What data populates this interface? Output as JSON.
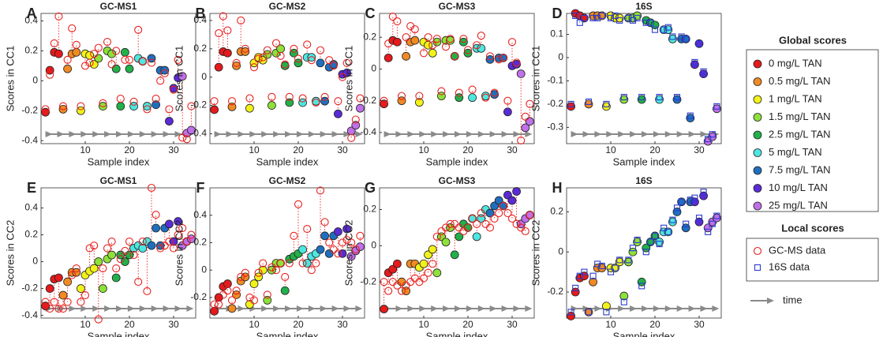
{
  "chart_data": {
    "type": "scatter",
    "global_title": "Global scores",
    "local_title": "Local scores",
    "time_label": "time",
    "groups": [
      {
        "name": "0 mg/L TAN",
        "color": "#e41a1c",
        "x": [
          1,
          2,
          3,
          4
        ]
      },
      {
        "name": "0.5 mg/L TAN",
        "color": "#f08a24",
        "x": [
          5,
          6,
          7,
          8
        ]
      },
      {
        "name": "1 mg/L TAN",
        "color": "#f2f21a",
        "x": [
          9,
          10,
          11,
          12
        ]
      },
      {
        "name": "1.5 mg/L TAN",
        "color": "#8ee03a",
        "x": [
          13,
          14,
          15,
          16
        ]
      },
      {
        "name": "2.5 mg/L TAN",
        "color": "#22b04a",
        "x": [
          17,
          18,
          19,
          20
        ]
      },
      {
        "name": "5 mg/L TAN",
        "color": "#4ee6e0",
        "x": [
          21,
          22,
          23,
          24
        ]
      },
      {
        "name": "7.5 mg/L TAN",
        "color": "#1f6fbf",
        "x": [
          25,
          26,
          27,
          28
        ]
      },
      {
        "name": "10 mg/L TAN",
        "color": "#5a2bd6",
        "x": [
          29,
          30,
          31
        ]
      },
      {
        "name": "25 mg/L TAN",
        "color": "#c070e8",
        "x": [
          32,
          33,
          34
        ]
      }
    ],
    "local_series": [
      {
        "name": "GC-MS data",
        "color": "#e8211f",
        "marker": "circle"
      },
      {
        "name": "16S data",
        "color": "#2a3bd0",
        "marker": "square"
      }
    ],
    "panels": [
      {
        "panel": "A",
        "title": "GC-MS1",
        "xlabel": "Sample index",
        "ylabel": "Scores in CC1",
        "xlim": [
          0,
          35
        ],
        "ylim": [
          -0.42,
          0.45
        ],
        "xticks": [
          10,
          20,
          30
        ],
        "yticks": [
          -0.4,
          -0.2,
          0,
          0.2,
          0.4
        ],
        "local_marker": "circle",
        "global": [
          [
            -0.21,
            0.07,
            0.19,
            0.18
          ],
          [
            -0.19,
            0.08,
            0.18,
            0.19
          ],
          [
            -0.2,
            0.18,
            0.17,
            0.11
          ],
          [
            0.15,
            -0.17,
            0.2,
            0.18
          ],
          [
            0.08,
            -0.17,
            0.19,
            0.08
          ],
          [
            -0.17,
            0.15,
            0.13,
            -0.17
          ],
          [
            0.15,
            -0.16,
            0.07,
            0.07
          ],
          [
            -0.27,
            -0.05,
            0.02
          ],
          [
            0.03,
            -0.35,
            -0.33
          ]
        ],
        "local": [
          [
            -0.19,
            0.04,
            0.25,
            0.43
          ],
          [
            -0.17,
            0.14,
            0.35,
            0.24
          ],
          [
            -0.17,
            0.1,
            0.12,
            0.18
          ],
          [
            0.22,
            -0.15,
            0.26,
            0.11
          ],
          [
            0.2,
            -0.12,
            0.14,
            0.14
          ],
          [
            -0.14,
            0.34,
            0.13,
            -0.19
          ],
          [
            0.12,
            -0.12,
            0.0,
            0.05
          ],
          [
            -0.19,
            -0.06,
            0.14
          ],
          [
            -0.38,
            -0.39,
            -0.17
          ]
        ]
      },
      {
        "panel": "B",
        "title": "GC-MS2",
        "xlabel": "Sample index",
        "ylabel": "Scores in CC1",
        "xlim": [
          0,
          35
        ],
        "ylim": [
          -0.47,
          0.45
        ],
        "xticks": [
          10,
          20,
          30
        ],
        "yticks": [
          -0.4,
          -0.2,
          0,
          0.2,
          0.4
        ],
        "local_marker": "circle",
        "global": [
          [
            -0.23,
            0.07,
            0.18,
            0.17
          ],
          [
            -0.21,
            0.08,
            0.18,
            0.18
          ],
          [
            -0.22,
            0.1,
            0.14,
            0.12
          ],
          [
            0.16,
            -0.2,
            0.17,
            0.2
          ],
          [
            0.08,
            -0.18,
            0.17,
            0.1
          ],
          [
            -0.18,
            0.14,
            0.14,
            -0.17
          ],
          [
            0.1,
            -0.17,
            0.07,
            0.09
          ],
          [
            -0.26,
            0.02,
            0.03
          ],
          [
            -0.38,
            -0.34,
            -0.22
          ]
        ],
        "local": [
          [
            -0.17,
            0.31,
            0.43,
            0.33
          ],
          [
            -0.17,
            0.1,
            0.4,
            0.2
          ],
          [
            -0.15,
            0.07,
            0.13,
            0.14
          ],
          [
            0.19,
            -0.14,
            0.24,
            0.15
          ],
          [
            0.09,
            -0.14,
            0.2,
            0.13
          ],
          [
            -0.15,
            0.23,
            0.12,
            -0.18
          ],
          [
            0.19,
            -0.14,
            0.12,
            0.08
          ],
          [
            -0.17,
            0.0,
            0.1
          ],
          [
            -0.43,
            -0.3,
            -0.15
          ]
        ]
      },
      {
        "panel": "C",
        "title": "GC-MS3",
        "xlabel": "Sample index",
        "ylabel": "Scores in CC1",
        "xlim": [
          0,
          35
        ],
        "ylim": [
          -0.47,
          0.35
        ],
        "xticks": [
          10,
          20,
          30
        ],
        "yticks": [
          -0.4,
          -0.2,
          0,
          0.2
        ],
        "local_marker": "circle",
        "global": [
          [
            -0.22,
            0.07,
            0.18,
            0.17
          ],
          [
            -0.2,
            0.08,
            0.17,
            0.18
          ],
          [
            -0.21,
            0.17,
            0.15,
            0.1
          ],
          [
            0.17,
            -0.17,
            0.18,
            0.18
          ],
          [
            0.08,
            -0.18,
            0.17,
            0.1
          ],
          [
            -0.18,
            0.13,
            0.13,
            -0.17
          ],
          [
            0.06,
            -0.16,
            0.07,
            0.07
          ],
          [
            -0.27,
            0.02,
            0.03
          ],
          [
            -0.03,
            -0.37,
            -0.33
          ]
        ],
        "local": [
          [
            -0.2,
            0.16,
            0.33,
            0.3
          ],
          [
            -0.17,
            0.2,
            0.27,
            0.25
          ],
          [
            -0.17,
            0.1,
            0.2,
            0.15
          ],
          [
            0.19,
            -0.14,
            0.14,
            0.19
          ],
          [
            0.08,
            -0.15,
            0.19,
            0.12
          ],
          [
            -0.13,
            0.15,
            0.21,
            -0.18
          ],
          [
            0.08,
            -0.15,
            0.06,
            0.07
          ],
          [
            -0.2,
            0.17,
            0.04
          ],
          [
            -0.45,
            -0.3,
            -0.22
          ]
        ]
      },
      {
        "panel": "D",
        "title": "16S",
        "xlabel": "Sample index",
        "ylabel": "Scores in CC1",
        "xlim": [
          0,
          35
        ],
        "ylim": [
          -0.37,
          0.19
        ],
        "xticks": [
          10,
          20,
          30
        ],
        "yticks": [
          -0.3,
          -0.2,
          -0.1,
          0,
          0.1
        ],
        "local_marker": "square",
        "global": [
          [
            -0.21,
            0.19,
            0.18,
            0.17
          ],
          [
            -0.2,
            0.18,
            0.18,
            0.18
          ],
          [
            -0.21,
            0.18,
            0.17,
            0.17
          ],
          [
            -0.18,
            0.17,
            0.17,
            0.18
          ],
          [
            -0.18,
            0.16,
            0.15,
            0.14
          ],
          [
            -0.18,
            0.12,
            0.12,
            0.08
          ],
          [
            -0.18,
            0.08,
            0.08,
            -0.26
          ],
          [
            -0.03,
            0.06,
            -0.07
          ],
          [
            -0.36,
            -0.34,
            -0.22
          ]
        ],
        "local": [
          [
            -0.2,
            0.18,
            0.15,
            0.17
          ],
          [
            -0.19,
            0.17,
            0.17,
            0.18
          ],
          [
            -0.2,
            0.17,
            0.18,
            0.16
          ],
          [
            -0.17,
            0.17,
            0.16,
            0.17
          ],
          [
            -0.17,
            0.15,
            0.15,
            0.12
          ],
          [
            -0.17,
            0.12,
            0.13,
            0.09
          ],
          [
            -0.17,
            0.09,
            0.08,
            -0.25
          ],
          [
            -0.02,
            0.06,
            -0.06
          ],
          [
            -0.35,
            -0.33,
            -0.21
          ]
        ]
      },
      {
        "panel": "E",
        "title": "GC-MS1",
        "xlabel": "Sample index",
        "ylabel": "Scores in CC2",
        "xlim": [
          0,
          35
        ],
        "ylim": [
          -0.42,
          0.55
        ],
        "xticks": [
          10,
          20,
          30
        ],
        "yticks": [
          -0.4,
          -0.2,
          0,
          0.2,
          0.4
        ],
        "local_marker": "circle",
        "global": [
          [
            -0.33,
            -0.2,
            -0.13,
            -0.12
          ],
          [
            -0.25,
            -0.15,
            -0.08,
            -0.08
          ],
          [
            -0.2,
            -0.1,
            -0.07,
            -0.05
          ],
          [
            0.0,
            -0.2,
            0.02,
            0.05
          ],
          [
            -0.12,
            0.05,
            0.0,
            0.05
          ],
          [
            0.1,
            0.12,
            0.1,
            0.15
          ],
          [
            0.12,
            0.25,
            0.12,
            0.25
          ],
          [
            0.28,
            0.15,
            0.3
          ],
          [
            0.12,
            0.15,
            0.17
          ]
        ],
        "local": [
          [
            -0.3,
            -0.35,
            -0.3,
            -0.35
          ],
          [
            -0.35,
            -0.3,
            -0.1,
            -0.05
          ],
          [
            -0.3,
            -0.25,
            0.1,
            0.12
          ],
          [
            -0.43,
            -0.05,
            0.1,
            0.15
          ],
          [
            -0.05,
            0.02,
            0.08,
            0.15
          ],
          [
            0.05,
            -0.15,
            0.15,
            -0.22
          ],
          [
            0.55,
            0.35,
            0.1,
            0.12
          ],
          [
            0.15,
            0.1,
            0.2
          ],
          [
            0.25,
            0.15,
            0.2
          ]
        ]
      },
      {
        "panel": "F",
        "title": "GC-MS2",
        "xlabel": "Sample index",
        "ylabel": "Scores in CC2",
        "xlim": [
          0,
          35
        ],
        "ylim": [
          -0.35,
          0.6
        ],
        "xticks": [
          10,
          20,
          30
        ],
        "yticks": [
          -0.2,
          0,
          0.2,
          0.4
        ],
        "local_marker": "circle",
        "global": [
          [
            -0.3,
            -0.2,
            -0.12,
            -0.1
          ],
          [
            -0.28,
            -0.18,
            -0.08,
            -0.05
          ],
          [
            -0.25,
            -0.1,
            -0.05,
            0.0
          ],
          [
            -0.22,
            0.0,
            0.05,
            0.05
          ],
          [
            -0.15,
            0.08,
            0.1,
            0.12
          ],
          [
            0.15,
            0.05,
            0.1,
            0.12
          ],
          [
            0.15,
            0.25,
            0.12,
            0.25
          ],
          [
            0.28,
            0.12,
            0.3
          ],
          [
            0.1,
            0.14,
            0.17
          ]
        ],
        "local": [
          [
            -0.25,
            -0.25,
            -0.18,
            -0.15
          ],
          [
            -0.22,
            -0.15,
            -0.05,
            -0.02
          ],
          [
            -0.2,
            -0.22,
            -0.02,
            0.05
          ],
          [
            -0.18,
            0.02,
            0.0,
            0.05
          ],
          [
            -0.05,
            0.05,
            0.25,
            0.48
          ],
          [
            0.05,
            0.3,
            0.0,
            0.05
          ],
          [
            0.58,
            0.35,
            0.2,
            0.15
          ],
          [
            0.12,
            0.2,
            0.22
          ],
          [
            0.2,
            0.15,
            0.25
          ]
        ]
      },
      {
        "panel": "G",
        "title": "GC-MS3",
        "xlabel": "Sample index",
        "ylabel": "Scores in CC2",
        "xlim": [
          0,
          35
        ],
        "ylim": [
          -0.4,
          0.32
        ],
        "xticks": [
          10,
          20,
          30
        ],
        "yticks": [
          -0.2,
          0,
          0.2
        ],
        "local_marker": "circle",
        "global": [
          [
            -0.35,
            -0.15,
            -0.13,
            -0.1
          ],
          [
            -0.2,
            -0.25,
            -0.1,
            -0.1
          ],
          [
            -0.12,
            -0.1,
            -0.05,
            -0.02
          ],
          [
            -0.15,
            0.05,
            0.02,
            0.1
          ],
          [
            -0.05,
            0.05,
            0.12,
            0.1
          ],
          [
            0.15,
            0.05,
            0.15,
            0.2
          ],
          [
            0.18,
            0.22,
            0.25,
            0.22
          ],
          [
            0.28,
            0.25,
            0.3
          ],
          [
            0.12,
            0.15,
            0.17
          ]
        ],
        "local": [
          [
            -0.2,
            -0.25,
            -0.2,
            -0.22
          ],
          [
            -0.25,
            -0.22,
            -0.2,
            -0.18
          ],
          [
            -0.2,
            -0.18,
            -0.15,
            -0.1
          ],
          [
            0.05,
            0.08,
            0.1,
            0.12
          ],
          [
            0.12,
            0.1,
            0.08,
            0.1
          ],
          [
            0.15,
            0.12,
            0.18,
            0.12
          ],
          [
            0.1,
            0.15,
            0.18,
            0.22
          ],
          [
            0.18,
            0.15,
            0.12
          ],
          [
            0.1,
            0.08,
            0.17
          ]
        ]
      },
      {
        "panel": "H",
        "title": "16S",
        "xlabel": "Sample index",
        "ylabel": "Scores in CC2",
        "xlim": [
          0,
          35
        ],
        "ylim": [
          -0.33,
          0.32
        ],
        "xticks": [
          10,
          20,
          30
        ],
        "yticks": [
          -0.2,
          0,
          0.2
        ],
        "local_marker": "square",
        "global": [
          [
            -0.32,
            -0.2,
            -0.13,
            -0.12
          ],
          [
            -0.3,
            -0.15,
            -0.08,
            -0.08
          ],
          [
            -0.27,
            -0.08,
            -0.08,
            -0.05
          ],
          [
            -0.22,
            -0.05,
            0.0,
            0.05
          ],
          [
            -0.15,
            0.02,
            0.05,
            0.08
          ],
          [
            0.05,
            0.1,
            0.1,
            0.15
          ],
          [
            0.2,
            0.25,
            0.12,
            0.25
          ],
          [
            0.25,
            0.15,
            0.28
          ],
          [
            0.12,
            0.15,
            0.17
          ]
        ],
        "local": [
          [
            -0.3,
            -0.18,
            -0.12,
            -0.1
          ],
          [
            -0.3,
            -0.12,
            -0.06,
            -0.07
          ],
          [
            -0.3,
            -0.1,
            -0.08,
            -0.04
          ],
          [
            -0.25,
            -0.04,
            0.02,
            0.06
          ],
          [
            -0.17,
            0.0,
            0.05,
            0.08
          ],
          [
            0.04,
            0.12,
            0.1,
            0.16
          ],
          [
            0.22,
            0.25,
            0.14,
            0.26
          ],
          [
            0.27,
            0.17,
            0.3
          ],
          [
            0.1,
            0.14,
            0.18
          ]
        ]
      }
    ]
  }
}
